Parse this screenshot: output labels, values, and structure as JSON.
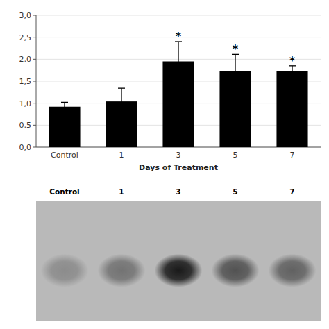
{
  "chart_data": [
    {
      "type": "bar",
      "xlabel": "Days of Treatment",
      "categories": [
        "Control",
        "1",
        "3",
        "5",
        "7"
      ],
      "values": [
        0.92,
        1.04,
        1.95,
        1.73,
        1.73
      ],
      "errors": [
        0.1,
        0.3,
        0.45,
        0.38,
        0.12
      ],
      "color": "#000000",
      "ylim": [
        0,
        3.0
      ],
      "yticks": [
        {
          "value": 0.0,
          "label": "0,0"
        },
        {
          "value": 0.5,
          "label": "0,5"
        },
        {
          "value": 1.0,
          "label": "1,0"
        },
        {
          "value": 1.5,
          "label": "1,5"
        },
        {
          "value": 2.0,
          "label": "2,0"
        },
        {
          "value": 2.5,
          "label": "2,5"
        },
        {
          "value": 3.0,
          "label": "3,0"
        }
      ],
      "annotations": [
        {
          "text": "*",
          "x": "3"
        },
        {
          "text": "*",
          "x": "5"
        },
        {
          "text": "*",
          "x": "7"
        }
      ]
    },
    {
      "type": "blot",
      "categories": [
        "Control",
        "1",
        "3",
        "5",
        "7"
      ],
      "values": [
        0.45,
        0.55,
        0.9,
        0.68,
        0.62
      ]
    }
  ]
}
